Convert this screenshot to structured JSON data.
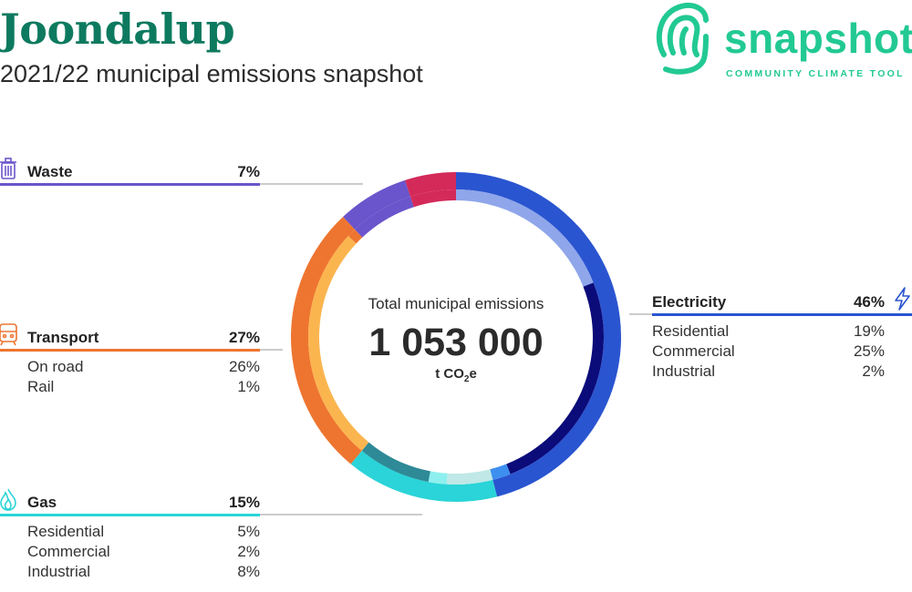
{
  "header": {
    "title": "Joondalup",
    "subtitle": "2021/22 municipal emissions snapshot"
  },
  "brand": {
    "name": "snapshot",
    "tagline": "COMMUNITY CLIMATE TOOL",
    "color": "#22c993"
  },
  "center": {
    "label": "Total municipal emissions",
    "total": "1 053 000",
    "unit_prefix": "t CO",
    "unit_sub": "2",
    "unit_suffix": "e"
  },
  "sectors": {
    "waste": {
      "label": "Waste",
      "pct": "7%",
      "color": "#6a55cc",
      "icon": "trash-icon"
    },
    "transport": {
      "label": "Transport",
      "pct": "27%",
      "color": "#ee7530",
      "icon": "train-icon",
      "items": [
        {
          "label": "On road",
          "pct": "26%"
        },
        {
          "label": "Rail",
          "pct": "1%"
        }
      ]
    },
    "gas": {
      "label": "Gas",
      "pct": "15%",
      "color": "#2ad4d8",
      "icon": "flame-icon",
      "items": [
        {
          "label": "Residential",
          "pct": "5%"
        },
        {
          "label": "Commercial",
          "pct": "2%"
        },
        {
          "label": "Industrial",
          "pct": "8%"
        }
      ]
    },
    "electricity": {
      "label": "Electricity",
      "pct": "46%",
      "color": "#2a55d0",
      "icon": "lightning-icon",
      "items": [
        {
          "label": "Residential",
          "pct": "19%"
        },
        {
          "label": "Commercial",
          "pct": "25%"
        },
        {
          "label": "Industrial",
          "pct": "2%"
        }
      ]
    }
  },
  "chart_data": {
    "type": "pie",
    "subtype": "donut",
    "total": 1053000,
    "unit": "t CO2e",
    "series": [
      {
        "name": "Electricity",
        "value": 46,
        "color": "#2a55d0",
        "breakdown": [
          {
            "name": "Residential",
            "value": 19,
            "color": "#8fa6ea"
          },
          {
            "name": "Commercial",
            "value": 25,
            "color": "#0b0b7a"
          },
          {
            "name": "Industrial",
            "value": 2,
            "color": "#3d8ff0"
          }
        ]
      },
      {
        "name": "Gas",
        "value": 15,
        "color": "#2ad4d8",
        "breakdown": [
          {
            "name": "Residential",
            "value": 5,
            "color": "#bfe8e6"
          },
          {
            "name": "Commercial",
            "value": 2,
            "color": "#8ef0ee"
          },
          {
            "name": "Industrial",
            "value": 8,
            "color": "#2e8a96"
          }
        ]
      },
      {
        "name": "Transport",
        "value": 27,
        "color": "#ee7530",
        "breakdown": [
          {
            "name": "On road",
            "value": 26,
            "color": "#fbb54f"
          },
          {
            "name": "Rail",
            "value": 1,
            "color": "#ee7530"
          }
        ]
      },
      {
        "name": "Waste",
        "value": 7,
        "color": "#6a55cc",
        "breakdown": []
      },
      {
        "name": "",
        "value": 5,
        "color": "#d42a5a",
        "breakdown": []
      }
    ]
  }
}
